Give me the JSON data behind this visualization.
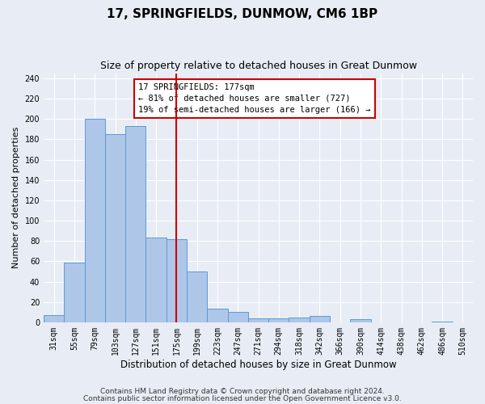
{
  "title": "17, SPRINGFIELDS, DUNMOW, CM6 1BP",
  "subtitle": "Size of property relative to detached houses in Great Dunmow",
  "xlabel": "Distribution of detached houses by size in Great Dunmow",
  "ylabel": "Number of detached properties",
  "categories": [
    "31sqm",
    "55sqm",
    "79sqm",
    "103sqm",
    "127sqm",
    "151sqm",
    "175sqm",
    "199sqm",
    "223sqm",
    "247sqm",
    "271sqm",
    "294sqm",
    "318sqm",
    "342sqm",
    "366sqm",
    "390sqm",
    "414sqm",
    "438sqm",
    "462sqm",
    "486sqm",
    "510sqm"
  ],
  "values": [
    7,
    59,
    200,
    185,
    193,
    83,
    82,
    50,
    13,
    10,
    4,
    4,
    5,
    6,
    0,
    3,
    0,
    0,
    0,
    1,
    0
  ],
  "bar_color": "#aec6e8",
  "bar_edge_color": "#5b9bd5",
  "annotation_text": "17 SPRINGFIELDS: 177sqm\n← 81% of detached houses are smaller (727)\n19% of semi-detached houses are larger (166) →",
  "annotation_box_color": "#ffffff",
  "annotation_box_edge": "#cc0000",
  "vline_color": "#cc0000",
  "vline_x_index": 6.0,
  "ylim": [
    0,
    245
  ],
  "yticks": [
    0,
    20,
    40,
    60,
    80,
    100,
    120,
    140,
    160,
    180,
    200,
    220,
    240
  ],
  "footer_line1": "Contains HM Land Registry data © Crown copyright and database right 2024.",
  "footer_line2": "Contains public sector information licensed under the Open Government Licence v3.0.",
  "bg_color": "#e8edf5",
  "plot_bg_color": "#e8edf5",
  "title_fontsize": 11,
  "subtitle_fontsize": 9,
  "xlabel_fontsize": 8.5,
  "ylabel_fontsize": 8,
  "footer_fontsize": 6.5,
  "annotation_fontsize": 7.5,
  "tick_fontsize": 7
}
